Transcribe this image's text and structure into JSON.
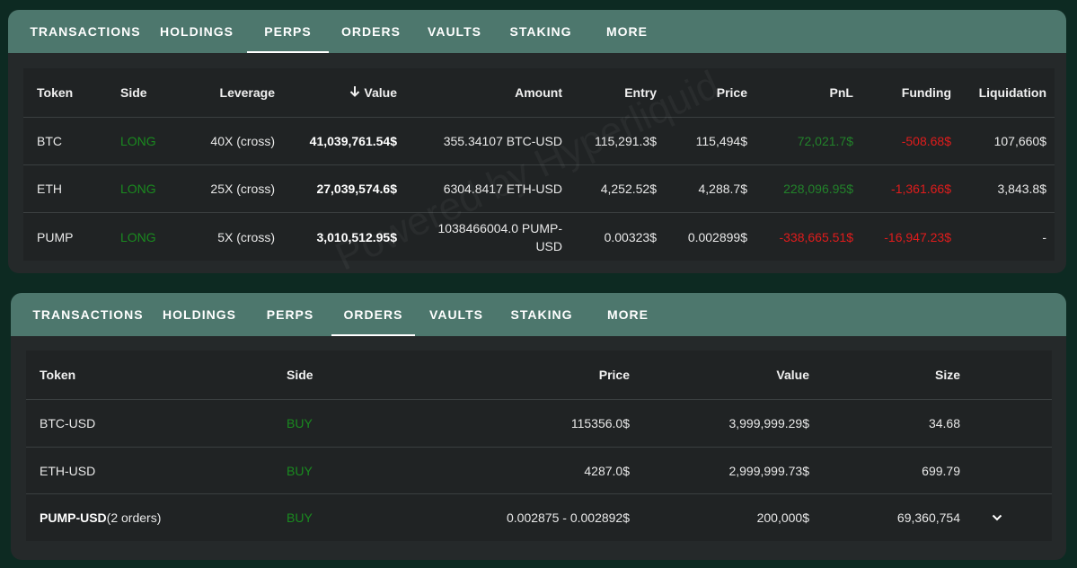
{
  "perps_panel": {
    "tabs": [
      "TRANSACTIONS",
      "HOLDINGS",
      "PERPS",
      "ORDERS",
      "VAULTS",
      "STAKING",
      "MORE"
    ],
    "active_tab": "PERPS",
    "watermark": "Powered by Hyperliquid",
    "headers": {
      "token": "Token",
      "side": "Side",
      "leverage": "Leverage",
      "value": "Value",
      "amount": "Amount",
      "entry": "Entry",
      "price": "Price",
      "pnl": "PnL",
      "funding": "Funding",
      "liquidation": "Liquidation"
    },
    "sort_icon": "arrow-down-icon",
    "rows": [
      {
        "token": "BTC",
        "side": "LONG",
        "leverage": "40X (cross)",
        "value": "41,039,761.54$",
        "amount": "355.34107 BTC-USD",
        "entry": "115,291.3$",
        "price": "115,494$",
        "pnl": "72,021.7$",
        "funding": "-508.68$",
        "liquidation": "107,660$"
      },
      {
        "token": "ETH",
        "side": "LONG",
        "leverage": "25X (cross)",
        "value": "27,039,574.6$",
        "amount": "6304.8417 ETH-USD",
        "entry": "4,252.52$",
        "price": "4,288.7$",
        "pnl": "228,096.95$",
        "funding": "-1,361.66$",
        "liquidation": "3,843.8$"
      },
      {
        "token": "PUMP",
        "side": "LONG",
        "leverage": "5X (cross)",
        "value": "3,010,512.95$",
        "amount": "1038466004.0 PUMP-USD",
        "entry": "0.00323$",
        "price": "0.002899$",
        "pnl": "-338,665.51$",
        "funding": "-16,947.23$",
        "liquidation": "-"
      }
    ]
  },
  "orders_panel": {
    "tabs": [
      "TRANSACTIONS",
      "HOLDINGS",
      "PERPS",
      "ORDERS",
      "VAULTS",
      "STAKING",
      "MORE"
    ],
    "active_tab": "ORDERS",
    "headers": {
      "token": "Token",
      "side": "Side",
      "price": "Price",
      "value": "Value",
      "size": "Size"
    },
    "rows": [
      {
        "token": "BTC-USD",
        "token_suffix": "",
        "side": "BUY",
        "price": "115356.0$",
        "value": "3,999,999.29$",
        "size": "34.68"
      },
      {
        "token": "ETH-USD",
        "token_suffix": "",
        "side": "BUY",
        "price": "4287.0$",
        "value": "2,999,999.73$",
        "size": "699.79"
      },
      {
        "token": "PUMP-USD",
        "token_suffix": "(2 orders)",
        "side": "BUY",
        "price": "0.002875 - 0.002892$",
        "value": "200,000$",
        "size": "69,360,754"
      }
    ],
    "expand_icon": "chevron-down-icon"
  },
  "colors": {
    "background": "#0d2a22",
    "panel": "#25292a",
    "tabbar": "#4d776d",
    "table": "#202324",
    "positive": "#22822a",
    "negative": "#e01c1c",
    "side": "#1a8a1f"
  }
}
